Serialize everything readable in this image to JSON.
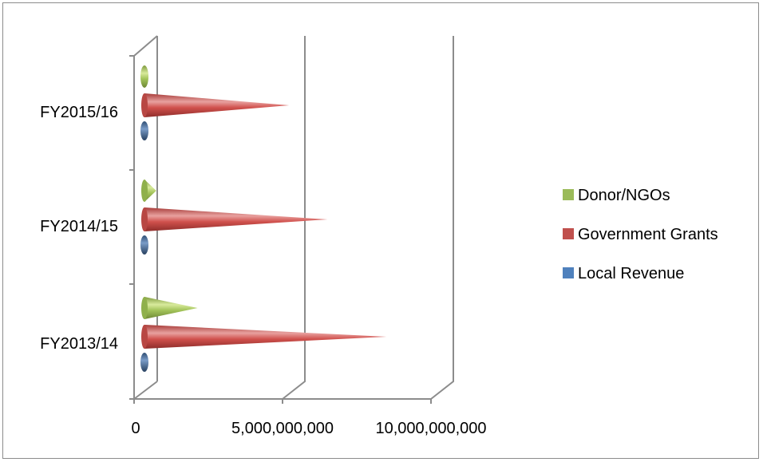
{
  "chart_data": {
    "type": "bar",
    "orientation": "horizontal",
    "style": "3d-cone",
    "categories": [
      "FY2013/14",
      "FY2014/15",
      "FY2015/16"
    ],
    "series": [
      {
        "name": "Local Revenue",
        "color": "#4f81bd",
        "values": [
          30000000,
          30000000,
          30000000
        ]
      },
      {
        "name": "Government Grants",
        "color": "#c0504d",
        "values": [
          8200000000,
          6200000000,
          4900000000
        ]
      },
      {
        "name": "Donor/NGOs",
        "color": "#9bbb59",
        "values": [
          1800000000,
          400000000,
          80000000
        ]
      }
    ],
    "xlim": [
      0,
      10000000000
    ],
    "x_ticks": [
      "0",
      "5,000,000,000",
      "10,000,000,000"
    ],
    "legend_position": "right",
    "gridlines": true
  }
}
